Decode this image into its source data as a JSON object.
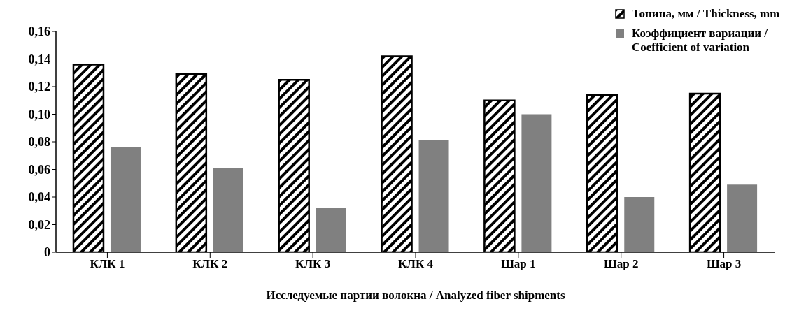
{
  "chart_data": {
    "type": "bar",
    "xlabel": "Исследуемые партии волокна / Analyzed fiber shipments",
    "categories": [
      "КЛК 1",
      "КЛК 2",
      "КЛК 3",
      "КЛК 4",
      "Шар 1",
      "Шар 2",
      "Шар 3"
    ],
    "series": [
      {
        "name": "Тонина, мм / Thickness, mm",
        "color": "#000000",
        "values": [
          0.136,
          0.129,
          0.125,
          0.142,
          0.11,
          0.114,
          0.115
        ]
      },
      {
        "name": "Коэффициент вариации / Coefficient of variation",
        "color": "#808080",
        "values": [
          0.076,
          0.061,
          0.032,
          0.081,
          0.1,
          0.04,
          0.049
        ]
      }
    ],
    "ylim": [
      0,
      0.16
    ],
    "yticks": [
      {
        "value": 0,
        "label": "0"
      },
      {
        "value": 0.02,
        "label": "0,02"
      },
      {
        "value": 0.04,
        "label": "0,04"
      },
      {
        "value": 0.06,
        "label": "0,06"
      },
      {
        "value": 0.08,
        "label": "0,08"
      },
      {
        "value": 0.1,
        "label": "0,10"
      },
      {
        "value": 0.12,
        "label": "0,12"
      },
      {
        "value": 0.14,
        "label": "0,14"
      },
      {
        "value": 0.16,
        "label": "0,16"
      }
    ],
    "grid": false,
    "legend": "top right"
  }
}
